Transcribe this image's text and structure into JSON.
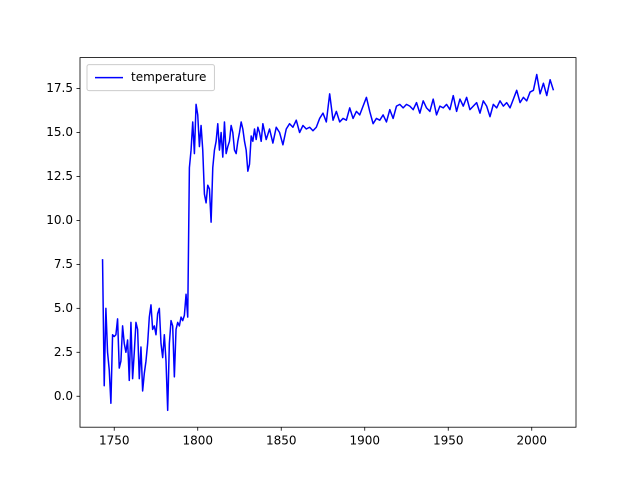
{
  "chart_data": {
    "type": "line",
    "x": [
      1743,
      1744,
      1745,
      1746,
      1747,
      1748,
      1749,
      1750,
      1751,
      1752,
      1753,
      1754,
      1755,
      1756,
      1757,
      1758,
      1759,
      1760,
      1761,
      1762,
      1763,
      1764,
      1765,
      1766,
      1767,
      1768,
      1769,
      1770,
      1771,
      1772,
      1773,
      1774,
      1775,
      1776,
      1777,
      1778,
      1779,
      1780,
      1781,
      1782,
      1783,
      1784,
      1785,
      1786,
      1787,
      1788,
      1789,
      1790,
      1791,
      1792,
      1793,
      1794,
      1795,
      1796,
      1797,
      1798,
      1799,
      1800,
      1801,
      1802,
      1803,
      1804,
      1805,
      1806,
      1807,
      1808,
      1809,
      1810,
      1811,
      1812,
      1813,
      1814,
      1815,
      1816,
      1817,
      1818,
      1819,
      1820,
      1821,
      1822,
      1823,
      1824,
      1825,
      1826,
      1827,
      1828,
      1829,
      1830,
      1831,
      1832,
      1833,
      1834,
      1835,
      1836,
      1837,
      1838,
      1839,
      1841,
      1843,
      1845,
      1847,
      1849,
      1851,
      1853,
      1855,
      1857,
      1859,
      1861,
      1863,
      1865,
      1867,
      1869,
      1871,
      1873,
      1875,
      1877,
      1879,
      1881,
      1883,
      1885,
      1887,
      1889,
      1891,
      1893,
      1895,
      1897,
      1899,
      1901,
      1903,
      1905,
      1907,
      1909,
      1911,
      1913,
      1915,
      1917,
      1919,
      1921,
      1923,
      1925,
      1927,
      1929,
      1931,
      1933,
      1935,
      1937,
      1939,
      1941,
      1943,
      1945,
      1947,
      1949,
      1951,
      1953,
      1955,
      1957,
      1959,
      1961,
      1963,
      1965,
      1967,
      1969,
      1971,
      1973,
      1975,
      1977,
      1979,
      1981,
      1983,
      1985,
      1987,
      1989,
      1991,
      1993,
      1995,
      1997,
      1999,
      2001,
      2003,
      2005,
      2007,
      2009,
      2011,
      2013
    ],
    "series": [
      {
        "name": "temperature",
        "color": "#0000ff",
        "values": [
          7.8,
          0.6,
          5.0,
          2.5,
          1.5,
          -0.4,
          3.5,
          3.4,
          3.5,
          4.4,
          1.6,
          2.0,
          4.0,
          3.0,
          2.5,
          3.2,
          0.9,
          4.2,
          1.0,
          2.5,
          4.2,
          3.8,
          1.0,
          2.8,
          0.3,
          1.3,
          2.0,
          3.0,
          4.5,
          5.2,
          3.8,
          4.0,
          3.5,
          4.7,
          5.0,
          3.0,
          2.2,
          3.5,
          2.0,
          -0.8,
          3.0,
          4.3,
          4.0,
          1.1,
          3.8,
          4.2,
          4.0,
          4.5,
          4.3,
          4.6,
          5.8,
          4.5,
          13.0,
          14.0,
          15.6,
          13.8,
          16.6,
          16.0,
          14.2,
          15.4,
          14.0,
          11.5,
          11.0,
          12.0,
          11.8,
          9.9,
          13.0,
          14.0,
          14.5,
          15.5,
          14.0,
          15.0,
          13.6,
          15.6,
          13.8,
          14.2,
          14.5,
          15.4,
          15.0,
          14.0,
          13.8,
          14.5,
          15.0,
          15.6,
          15.2,
          14.5,
          14.0,
          12.8,
          13.2,
          14.8,
          14.5,
          15.2,
          14.6,
          15.3,
          15.0,
          14.5,
          15.5,
          14.6,
          15.2,
          14.4,
          15.3,
          15.0,
          14.3,
          15.2,
          15.5,
          15.3,
          15.7,
          15.0,
          15.4,
          15.2,
          15.3,
          15.1,
          15.3,
          15.8,
          16.1,
          15.6,
          17.2,
          15.7,
          16.2,
          15.6,
          15.8,
          15.7,
          16.4,
          15.8,
          16.2,
          16.0,
          16.5,
          17.0,
          16.2,
          15.5,
          15.8,
          15.7,
          16.0,
          15.6,
          16.3,
          15.8,
          16.5,
          16.6,
          16.4,
          16.6,
          16.5,
          16.3,
          16.7,
          16.1,
          16.8,
          16.4,
          16.2,
          16.9,
          16.0,
          16.5,
          16.4,
          16.6,
          16.3,
          17.1,
          16.2,
          16.9,
          16.5,
          17.0,
          16.3,
          16.5,
          16.7,
          16.1,
          16.8,
          16.5,
          15.9,
          16.6,
          16.4,
          16.8,
          16.5,
          16.7,
          16.4,
          16.9,
          17.4,
          16.7,
          17.0,
          16.8,
          17.3,
          17.4,
          18.3,
          17.2,
          17.8,
          17.1,
          18.0,
          17.4
        ]
      }
    ],
    "xlim": [
      1729.5,
      2026.5
    ],
    "xticks": [
      1750,
      1800,
      1850,
      1900,
      1950,
      2000
    ],
    "ylim": [
      -1.76,
      19.26
    ],
    "yticks": [
      {
        "value": 0,
        "label": "0.0"
      },
      2.5,
      {
        "value": 5,
        "label": "5.0"
      },
      7.5,
      {
        "value": 10,
        "label": "10.0"
      },
      12.5,
      {
        "value": 15,
        "label": "15.0"
      },
      17.5
    ],
    "grid": false,
    "legend": "upper left"
  }
}
